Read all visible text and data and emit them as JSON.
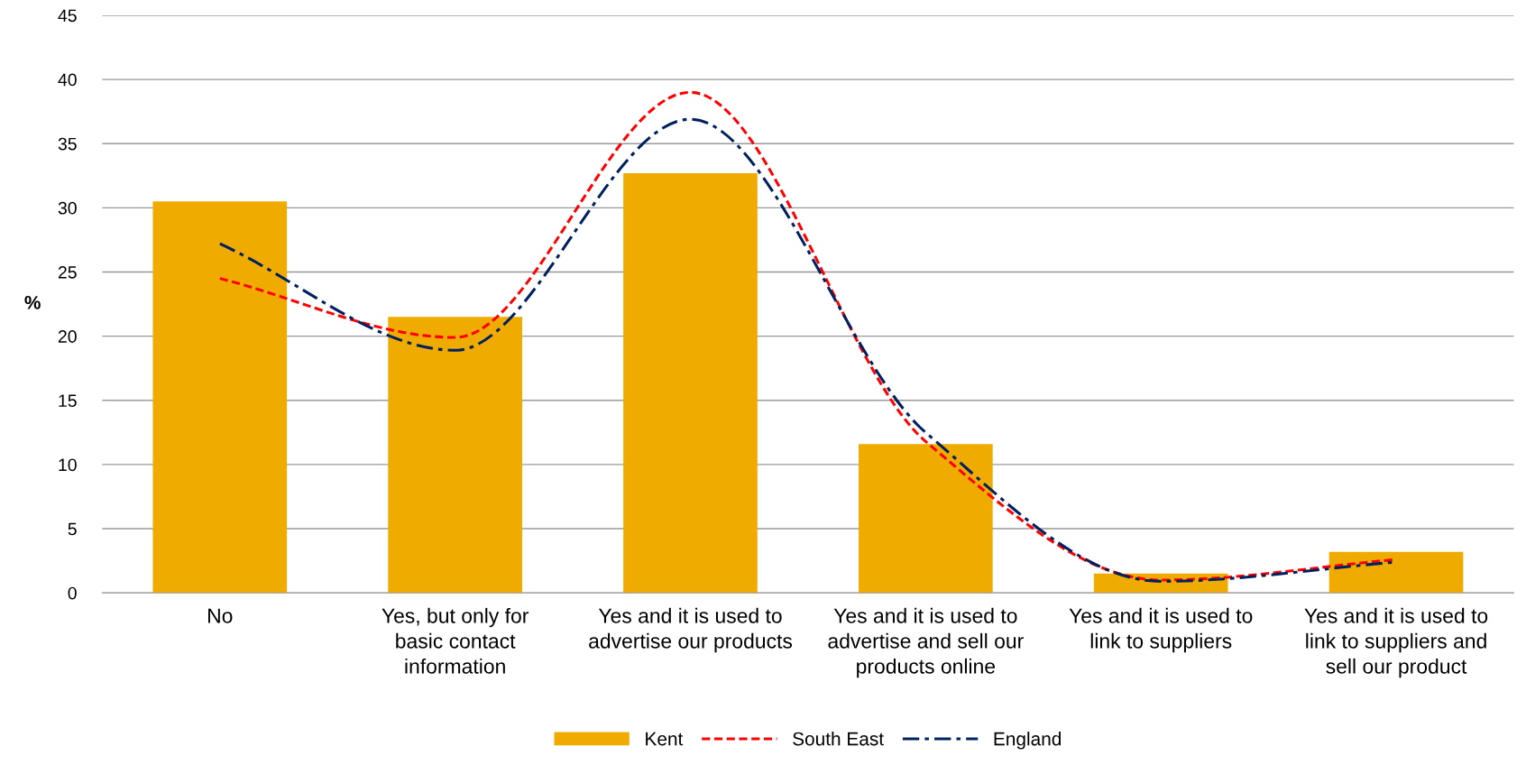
{
  "chart_data": {
    "type": "bar",
    "ylabel": "%",
    "categories": [
      "No",
      "Yes, but only for basic contact information",
      "Yes and it is used to advertise our products",
      "Yes and it is used to advertise and sell our products online",
      "Yes and it is used to link to suppliers",
      "Yes and it is used to link to suppliers and sell our product"
    ],
    "series": [
      {
        "name": "Kent",
        "color": "#f0ab00",
        "values": [
          30.5,
          21.5,
          32.7,
          11.6,
          1.5,
          3.2
        ]
      },
      {
        "name": "South East",
        "type": "line",
        "line_style": "dashed",
        "color": "#ff0000",
        "values": [
          24.5,
          19.9,
          39.0,
          11.8,
          1.0,
          2.6
        ]
      },
      {
        "name": "England",
        "type": "line",
        "line_style": "dashdot",
        "color": "#002060",
        "values": [
          27.2,
          18.9,
          36.9,
          12.5,
          0.9,
          2.4
        ]
      }
    ],
    "ylim": [
      0,
      45
    ],
    "yticks": [
      0,
      5,
      10,
      15,
      20,
      25,
      30,
      35,
      40,
      45
    ],
    "grid": "y",
    "legend": "bottom"
  }
}
